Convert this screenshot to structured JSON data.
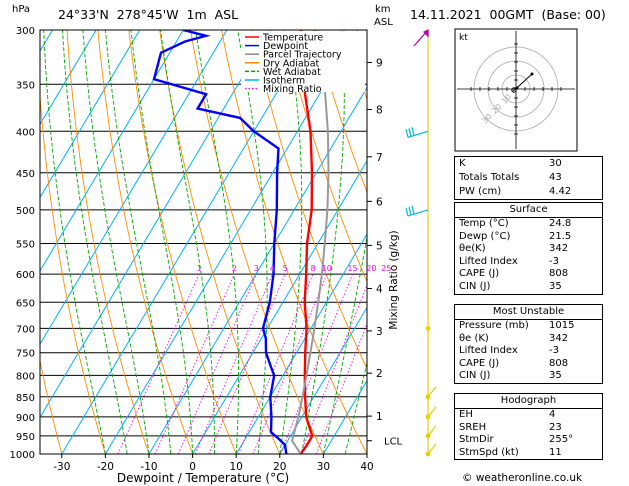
{
  "header": {
    "location": "24°33'N  278°45'W  1m  ASL",
    "datetime": "14.11.2021  00GMT  (Base: 00)",
    "hpa_label": "hPa",
    "km_label": "km",
    "asl_label": "ASL",
    "mixing_axis_label": "Mixing Ratio (g/kg)",
    "credit": "© weatheronline.co.uk"
  },
  "chart_data": {
    "type": "line",
    "title": "Skew-T log-P diagram",
    "xlabel": "Dewpoint / Temperature (°C)",
    "ylabel": "hPa",
    "pressure_ticks": [
      300,
      350,
      400,
      450,
      500,
      550,
      600,
      650,
      700,
      750,
      800,
      850,
      900,
      950,
      1000
    ],
    "temperature_ticks": [
      -30,
      -20,
      -10,
      0,
      10,
      20,
      30,
      40
    ],
    "xlim": [
      -35,
      40
    ],
    "ylim": [
      1000,
      300
    ],
    "altitude_km_ticks": [
      {
        "km": 1,
        "p": 898
      },
      {
        "km": 2,
        "p": 795
      },
      {
        "km": 3,
        "p": 705
      },
      {
        "km": 4,
        "p": 625
      },
      {
        "km": 5,
        "p": 553
      },
      {
        "km": 6,
        "p": 488
      },
      {
        "km": 7,
        "p": 430
      },
      {
        "km": 8,
        "p": 376
      },
      {
        "km": 9,
        "p": 329
      }
    ],
    "lcl": {
      "label": "LCL",
      "p": 963
    },
    "mixing_ratio_labels": [
      "1",
      "2",
      "3",
      "4",
      "5",
      "8",
      "10",
      "15",
      "20",
      "25"
    ],
    "mixing_ratio_values": [
      1,
      2,
      3,
      4,
      5,
      8,
      10,
      15,
      20,
      25
    ],
    "legend": [
      "Temperature",
      "Dewpoint",
      "Parcel Trajectory",
      "Dry Adiabat",
      "Wet Adiabat",
      "Isotherm",
      "Mixing Ratio"
    ],
    "legend_colors": [
      "#ff0000",
      "#0000ff",
      "#888888",
      "#ff8c00",
      "#00aa00",
      "#00b0ff",
      "#ff00ff"
    ],
    "series": [
      {
        "name": "Temperature",
        "color": "#ff0000",
        "points": [
          [
            1000,
            24.8
          ],
          [
            975,
            25
          ],
          [
            950,
            25
          ],
          [
            925,
            23
          ],
          [
            900,
            21
          ],
          [
            850,
            18
          ],
          [
            800,
            15
          ],
          [
            750,
            12
          ],
          [
            700,
            9
          ],
          [
            650,
            5
          ],
          [
            600,
            1.5
          ],
          [
            550,
            -2.5
          ],
          [
            500,
            -6
          ],
          [
            450,
            -11
          ],
          [
            400,
            -17
          ],
          [
            350,
            -25
          ],
          [
            300,
            -33
          ]
        ]
      },
      {
        "name": "Dewpoint",
        "color": "#0000ff",
        "points": [
          [
            1000,
            21.5
          ],
          [
            975,
            20
          ],
          [
            960,
            18
          ],
          [
            940,
            15
          ],
          [
            900,
            13
          ],
          [
            850,
            10
          ],
          [
            800,
            8
          ],
          [
            780,
            6
          ],
          [
            750,
            3
          ],
          [
            720,
            1
          ],
          [
            700,
            -1
          ],
          [
            650,
            -3
          ],
          [
            600,
            -6
          ],
          [
            550,
            -10
          ],
          [
            500,
            -14
          ],
          [
            450,
            -19
          ],
          [
            420,
            -22
          ],
          [
            400,
            -30
          ],
          [
            385,
            -35
          ],
          [
            375,
            -46
          ],
          [
            360,
            -46
          ],
          [
            345,
            -60
          ],
          [
            320,
            -62
          ],
          [
            310,
            -58
          ],
          [
            305,
            -54
          ],
          [
            300,
            -60
          ]
        ]
      },
      {
        "name": "Parcel Trajectory",
        "color": "#999999",
        "points": [
          [
            1000,
            24.8
          ],
          [
            963,
            21
          ],
          [
            900,
            19.2
          ],
          [
            850,
            17.4
          ],
          [
            800,
            15.4
          ],
          [
            750,
            13.2
          ],
          [
            700,
            10.8
          ],
          [
            650,
            8.1
          ],
          [
            600,
            5.1
          ],
          [
            550,
            1.6
          ],
          [
            500,
            -2.4
          ],
          [
            450,
            -7.2
          ],
          [
            400,
            -13
          ],
          [
            350,
            -20.2
          ],
          [
            300,
            -29.5
          ]
        ]
      }
    ],
    "wind_barbs": [
      {
        "p": 300,
        "color": "#b000b0"
      },
      {
        "p": 400,
        "color": "#00bcd4"
      },
      {
        "p": 500,
        "color": "#00bcd4"
      },
      {
        "p": 700,
        "color": "#e8d000"
      },
      {
        "p": 850,
        "color": "#e8d000"
      },
      {
        "p": 900,
        "color": "#e8d000"
      },
      {
        "p": 950,
        "color": "#e8d000"
      },
      {
        "p": 1000,
        "color": "#e8d000"
      }
    ]
  },
  "hodograph": {
    "unit_label": "kt",
    "ring_labels": [
      "10",
      "20",
      "30"
    ]
  },
  "indices": [
    {
      "label": "K",
      "value": "30"
    },
    {
      "label": "Totals Totals",
      "value": "43"
    },
    {
      "label": "PW (cm)",
      "value": "4.42"
    }
  ],
  "surface": {
    "title": "Surface",
    "rows": [
      {
        "label": "Temp (°C)",
        "value": "24.8"
      },
      {
        "label": "Dewp (°C)",
        "value": "21.5"
      },
      {
        "label": "θe(K)",
        "value": "342"
      },
      {
        "label": "Lifted Index",
        "value": "-3"
      },
      {
        "label": "CAPE (J)",
        "value": "808"
      },
      {
        "label": "CIN (J)",
        "value": "35"
      }
    ]
  },
  "unstable": {
    "title": "Most Unstable",
    "rows": [
      {
        "label": "Pressure (mb)",
        "value": "1015"
      },
      {
        "label": "θe (K)",
        "value": "342"
      },
      {
        "label": "Lifted Index",
        "value": "-3"
      },
      {
        "label": "CAPE (J)",
        "value": "808"
      },
      {
        "label": "CIN (J)",
        "value": "35"
      }
    ]
  },
  "hodo_table": {
    "title": "Hodograph",
    "rows": [
      {
        "label": "EH",
        "value": "4"
      },
      {
        "label": "SREH",
        "value": "23"
      },
      {
        "label": "StmDir",
        "value": "255°"
      },
      {
        "label": "StmSpd (kt)",
        "value": "11"
      }
    ]
  }
}
